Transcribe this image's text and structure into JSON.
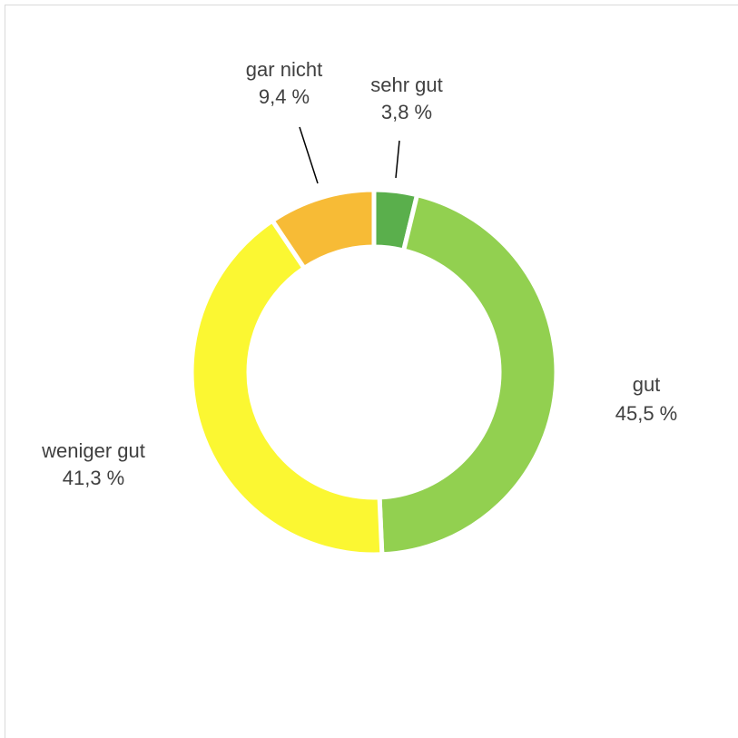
{
  "chart_data": {
    "type": "donut",
    "categories": [
      "sehr gut",
      "gut",
      "weniger gut",
      "gar nicht"
    ],
    "values": [
      3.8,
      45.5,
      41.3,
      9.4
    ],
    "value_labels": [
      "3,8 %",
      "45,5 %",
      "41,3 %",
      "9,4 %"
    ],
    "colors": [
      "#5aaf4c",
      "#92d050",
      "#fbf732",
      "#f7bb36"
    ]
  }
}
